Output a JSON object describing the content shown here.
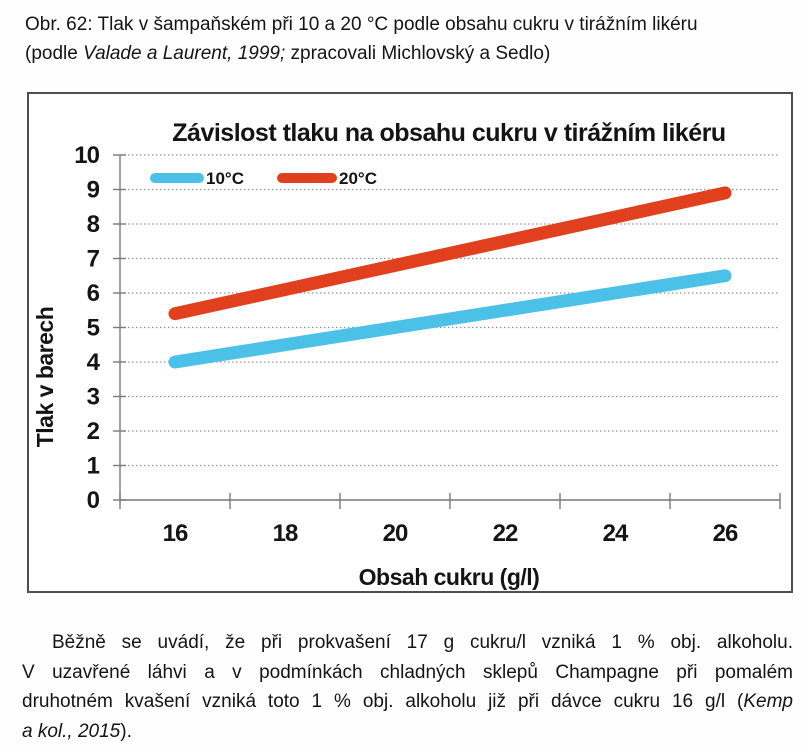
{
  "figure_caption": {
    "line1": "Obr. 62: Tlak v šampaňském při 10 a 20 °C podle obsahu cukru v tirážním likéru",
    "line2_segments": [
      {
        "t": "(podle ",
        "i": false
      },
      {
        "t": "Valade a Laurent, 1999;",
        "i": true
      },
      {
        "t": " zpracovali Michlovský a Sedlo)",
        "i": false
      }
    ]
  },
  "chart_data": {
    "type": "line",
    "title": "Závislost tlaku na obsahu cukru v tirážním likéru",
    "xlabel": "Obsah cukru (g/l)",
    "ylabel": "Tlak v barech",
    "x": [
      16,
      18,
      20,
      22,
      24,
      26
    ],
    "x_tick_labels": [
      "16",
      "18",
      "20",
      "22",
      "24",
      "26"
    ],
    "y_ticks": [
      0,
      1,
      2,
      3,
      4,
      5,
      6,
      7,
      8,
      9,
      10
    ],
    "ylim": [
      0,
      10
    ],
    "grid": "horizontal-dotted",
    "legend_position": "inside-top-left",
    "grid_color": "#949494",
    "axis_color": "#7a7a7a",
    "series": [
      {
        "name": "10°C",
        "color": "#4cc1e8",
        "values": [
          4.0,
          4.5,
          5.0,
          5.5,
          6.0,
          6.5
        ]
      },
      {
        "name": "20°C",
        "color": "#e1401e",
        "values": [
          5.4,
          6.1,
          6.8,
          7.5,
          8.2,
          8.9
        ]
      }
    ]
  },
  "body_paragraph": {
    "lines": [
      {
        "justify": true,
        "indent": true,
        "segments": [
          {
            "t": "Běžně se uvádí, že při prokvašení 17 g cukru/l vzniká 1 % obj. alkoholu.",
            "i": false
          }
        ]
      },
      {
        "justify": true,
        "indent": false,
        "segments": [
          {
            "t": "V uzavřené láhvi a v podmínkách chladných sklepů Champagne při pomalém",
            "i": false
          }
        ]
      },
      {
        "justify": true,
        "indent": false,
        "segments": [
          {
            "t": "druhotném kvašení vzniká toto 1 % obj. alkoholu již při dávce cukru 16 g/l (",
            "i": false
          },
          {
            "t": "Kemp",
            "i": true
          }
        ]
      },
      {
        "justify": false,
        "indent": false,
        "segments": [
          {
            "t": "a kol., 2015",
            "i": true
          },
          {
            "t": ").",
            "i": false
          }
        ]
      }
    ]
  }
}
